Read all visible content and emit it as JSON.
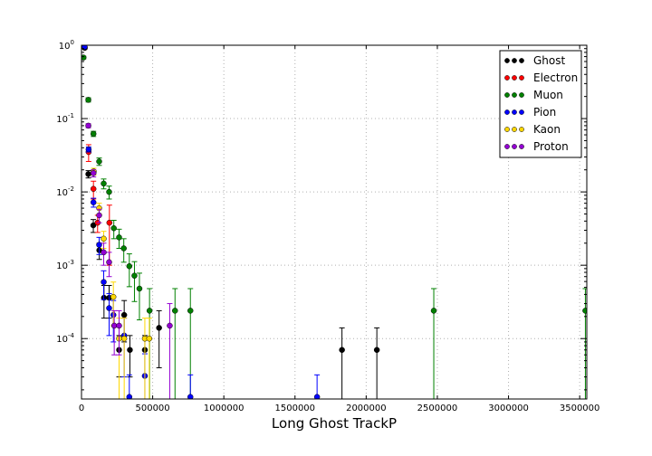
{
  "chart_data": {
    "type": "scatter",
    "title": "",
    "xlabel": "Long Ghost TrackP",
    "ylabel": "",
    "xlim": [
      0,
      3550000
    ],
    "ylim": [
      1.5e-05,
      1.0
    ],
    "yscale": "log",
    "grid": true,
    "legend_position": "top-right",
    "x_ticks": [
      0,
      500000,
      1000000,
      1500000,
      2000000,
      2500000,
      3000000,
      3500000
    ],
    "x_tick_labels": [
      "0",
      "500000",
      "1000000",
      "1500000",
      "2000000",
      "2500000",
      "3000000",
      "3500000"
    ],
    "y_ticks": [
      0.0001,
      0.001,
      0.01,
      0.1,
      1
    ],
    "y_tick_labels": [
      {
        "base": "10",
        "exp": "-4"
      },
      {
        "base": "10",
        "exp": "-3"
      },
      {
        "base": "10",
        "exp": "-2"
      },
      {
        "base": "10",
        "exp": "-1"
      },
      {
        "base": "10",
        "exp": "0"
      }
    ],
    "series": [
      {
        "name": "Ghost",
        "color": "#000000",
        "points": [
          [
            23000,
            0.92,
            0.03,
            0.03
          ],
          [
            48000,
            0.0175,
            0.002,
            0.002
          ],
          [
            83000,
            0.0035,
            0.0007,
            0.0007
          ],
          [
            125000,
            0.0016,
            0.0004,
            0.0004
          ],
          [
            158000,
            0.00036,
            0.00017,
            0.00017
          ],
          [
            194000,
            0.00036,
            0.00017,
            0.00017
          ],
          [
            264000,
            7e-05,
            4e-05,
            4e-05
          ],
          [
            300000,
            0.00021,
            0.00012,
            0.00012
          ],
          [
            340000,
            7e-05,
            4e-05,
            4e-05
          ],
          [
            445000,
            7e-05,
            4e-05,
            4e-05
          ],
          [
            545000,
            0.00014,
            0.0001,
            0.0001
          ],
          [
            1830000,
            7e-05,
            7e-05,
            7e-05
          ],
          [
            2075000,
            7e-05,
            7e-05,
            7e-05
          ]
        ]
      },
      {
        "name": "Electron",
        "color": "#ff0000",
        "points": [
          [
            50000,
            0.035,
            0.009,
            0.009
          ],
          [
            84000,
            0.011,
            0.003,
            0.003
          ],
          [
            113000,
            0.0038,
            0.001,
            0.001
          ],
          [
            196000,
            0.0038,
            0.0028,
            0.0028
          ]
        ]
      },
      {
        "name": "Muon",
        "color": "#008000",
        "points": [
          [
            14000,
            0.68,
            0.03,
            0.03
          ],
          [
            48000,
            0.18,
            0.012,
            0.012
          ],
          [
            84000,
            0.062,
            0.005,
            0.005
          ],
          [
            124000,
            0.026,
            0.003,
            0.003
          ],
          [
            156000,
            0.013,
            0.002,
            0.002
          ],
          [
            194000,
            0.01,
            0.002,
            0.002
          ],
          [
            227000,
            0.0032,
            0.0009,
            0.0009
          ],
          [
            264000,
            0.0024,
            0.0007,
            0.0007
          ],
          [
            297000,
            0.0017,
            0.0006,
            0.0006
          ],
          [
            336000,
            0.00097,
            0.00046,
            0.00046
          ],
          [
            372000,
            0.00072,
            0.0004,
            0.0004
          ],
          [
            407000,
            0.00048,
            0.0003,
            0.0003
          ],
          [
            478000,
            0.00024,
            0.00024,
            0.00024
          ],
          [
            657000,
            0.00024,
            0.00024,
            0.00024
          ],
          [
            765000,
            0.00024,
            0.00024,
            0.00024
          ],
          [
            2475000,
            0.00024,
            0.00024,
            0.00024
          ],
          [
            3540000,
            0.00024,
            0.00024,
            0.00024
          ]
        ]
      },
      {
        "name": "Pion",
        "color": "#0000ff",
        "points": [
          [
            22000,
            0.95,
            0.01,
            0.01
          ],
          [
            50000,
            0.038,
            0.003,
            0.003
          ],
          [
            84000,
            0.0072,
            0.001,
            0.001
          ],
          [
            124000,
            0.0019,
            0.0005,
            0.0005
          ],
          [
            156000,
            0.00059,
            0.00025,
            0.00025
          ],
          [
            194000,
            0.00026,
            0.00015,
            0.00015
          ],
          [
            224000,
            0.00021,
            0.00012,
            0.00012
          ],
          [
            300000,
            0.00011,
            8e-05,
            8e-05
          ],
          [
            336000,
            1.6e-05,
            1.6e-05,
            1.6e-05
          ],
          [
            445000,
            3.1e-05,
            3.1e-05,
            3.1e-05
          ],
          [
            765000,
            1.6e-05,
            1.6e-05,
            1.6e-05
          ],
          [
            1655000,
            1.6e-05,
            1.6e-05,
            1.6e-05
          ]
        ]
      },
      {
        "name": "Kaon",
        "color": "#ffd700",
        "points": [
          [
            86000,
            0.019,
            0.002,
            0.002
          ],
          [
            124000,
            0.006,
            0.001,
            0.001
          ],
          [
            156000,
            0.0023,
            0.0006,
            0.0006
          ],
          [
            224000,
            0.00037,
            0.00022,
            0.00022
          ],
          [
            264000,
            0.0001,
            9e-05,
            9e-05
          ],
          [
            300000,
            0.0001,
            9e-05,
            9e-05
          ],
          [
            445000,
            0.0001,
            9e-05,
            9e-05
          ],
          [
            476000,
            0.0001,
            9e-05,
            9e-05
          ]
        ]
      },
      {
        "name": "Proton",
        "color": "#9400d3",
        "points": [
          [
            48000,
            0.08,
            0.005,
            0.005
          ],
          [
            84000,
            0.018,
            0.002,
            0.002
          ],
          [
            124000,
            0.0048,
            0.001,
            0.001
          ],
          [
            156000,
            0.0015,
            0.0005,
            0.0005
          ],
          [
            194000,
            0.0011,
            0.0004,
            0.0004
          ],
          [
            230000,
            0.00015,
            9e-05,
            9e-05
          ],
          [
            264000,
            0.00015,
            9e-05,
            9e-05
          ],
          [
            620000,
            0.00015,
            0.00015,
            0.00015
          ]
        ]
      }
    ]
  }
}
